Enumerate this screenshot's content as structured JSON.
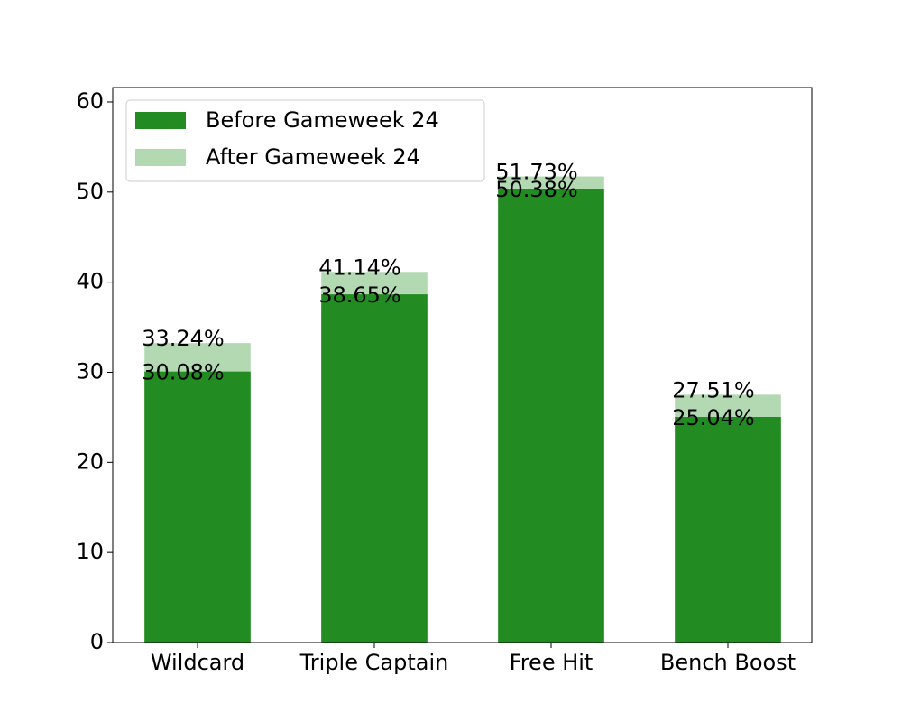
{
  "chart_data": {
    "type": "bar",
    "mode": "overlap",
    "categories": [
      "Wildcard",
      "Triple Captain",
      "Free Hit",
      "Bench Boost"
    ],
    "series": [
      {
        "name": "After Gameweek 24",
        "color": "#b3d9b3",
        "values": [
          33.24,
          41.14,
          51.73,
          27.51
        ],
        "value_labels": [
          "33.24%",
          "41.14%",
          "51.73%",
          "27.51%"
        ]
      },
      {
        "name": "Before Gameweek 24",
        "color": "#228b22",
        "values": [
          30.08,
          38.65,
          50.38,
          25.04
        ],
        "value_labels": [
          "30.08%",
          "38.65%",
          "50.38%",
          "25.04%"
        ]
      }
    ],
    "ylim": [
      0,
      61.6
    ],
    "yticks": [
      0,
      10,
      20,
      30,
      40,
      50,
      60
    ],
    "legend": "upper left",
    "legend_order": [
      1,
      0
    ],
    "grid": false
  }
}
